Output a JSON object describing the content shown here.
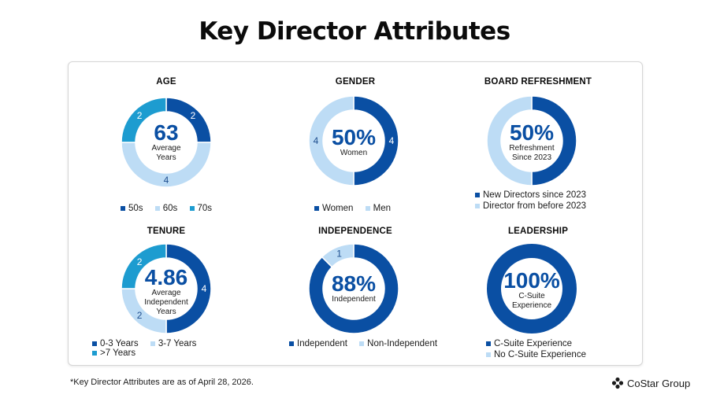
{
  "title": "Key Director Attributes",
  "colors": {
    "dark": "#0a4fa3",
    "light": "#bddcf5",
    "mid": "#1d9cd0"
  },
  "panels": [
    {
      "id": "age",
      "title": "AGE",
      "big": "63",
      "sub1": "Average",
      "sub2": "Years",
      "sub3": "",
      "segments": [
        {
          "value": 2,
          "label": "2",
          "color": "#0a4fa3"
        },
        {
          "value": 4,
          "label": "4",
          "color": "#bddcf5"
        },
        {
          "value": 2,
          "label": "2",
          "color": "#1d9cd0"
        }
      ],
      "legend": [
        {
          "label": "50s",
          "color": "#0a4fa3"
        },
        {
          "label": "60s",
          "color": "#bddcf5"
        },
        {
          "label": "70s",
          "color": "#1d9cd0"
        }
      ]
    },
    {
      "id": "gender",
      "title": "GENDER",
      "big": "50%",
      "sub1": "Women",
      "sub2": "",
      "sub3": "",
      "segments": [
        {
          "value": 4,
          "label": "4",
          "color": "#0a4fa3"
        },
        {
          "value": 4,
          "label": "4",
          "color": "#bddcf5"
        }
      ],
      "legend": [
        {
          "label": "Women",
          "color": "#0a4fa3"
        },
        {
          "label": "Men",
          "color": "#bddcf5"
        }
      ]
    },
    {
      "id": "refresh",
      "title": "BOARD REFRESHMENT",
      "big": "50%",
      "sub1": "Refreshment",
      "sub2": "Since 2023",
      "sub3": "",
      "segments": [
        {
          "value": 4,
          "label": "",
          "color": "#0a4fa3"
        },
        {
          "value": 4,
          "label": "",
          "color": "#bddcf5"
        }
      ],
      "legend": [
        {
          "label": "New Directors since 2023",
          "color": "#0a4fa3"
        },
        {
          "label": "Director from before 2023",
          "color": "#bddcf5"
        }
      ]
    },
    {
      "id": "tenure",
      "title": "TENURE",
      "big": "4.86",
      "sub1": "Average",
      "sub2": "Independent",
      "sub3": "Years",
      "segments": [
        {
          "value": 4,
          "label": "4",
          "color": "#0a4fa3"
        },
        {
          "value": 2,
          "label": "2",
          "color": "#bddcf5"
        },
        {
          "value": 2,
          "label": "2",
          "color": "#1d9cd0"
        }
      ],
      "legend": [
        {
          "label": "0-3 Years",
          "color": "#0a4fa3"
        },
        {
          "label": "3-7 Years",
          "color": "#bddcf5"
        },
        {
          "label": ">7 Years",
          "color": "#1d9cd0"
        }
      ]
    },
    {
      "id": "indep",
      "title": "INDEPENDENCE",
      "big": "88%",
      "sub1": "Independent",
      "sub2": "",
      "sub3": "",
      "segments": [
        {
          "value": 7,
          "label": "",
          "color": "#0a4fa3"
        },
        {
          "value": 1,
          "label": "1",
          "color": "#bddcf5"
        }
      ],
      "legend": [
        {
          "label": "Independent",
          "color": "#0a4fa3"
        },
        {
          "label": "Non-Independent",
          "color": "#bddcf5"
        }
      ]
    },
    {
      "id": "lead",
      "title": "LEADERSHIP",
      "big": "100%",
      "sub1": "C-Suite",
      "sub2": "Experience",
      "sub3": "",
      "segments": [
        {
          "value": 8,
          "label": "",
          "color": "#0a4fa3"
        }
      ],
      "legend": [
        {
          "label": "C-Suite Experience",
          "color": "#0a4fa3"
        },
        {
          "label": "No C-Suite Experience",
          "color": "#bddcf5"
        }
      ]
    }
  ],
  "footnote": "*Key Director Attributes are as of April 28, 2026.",
  "logo": {
    "text": "CoStar Group",
    "icon": "costar-star-logo"
  }
}
